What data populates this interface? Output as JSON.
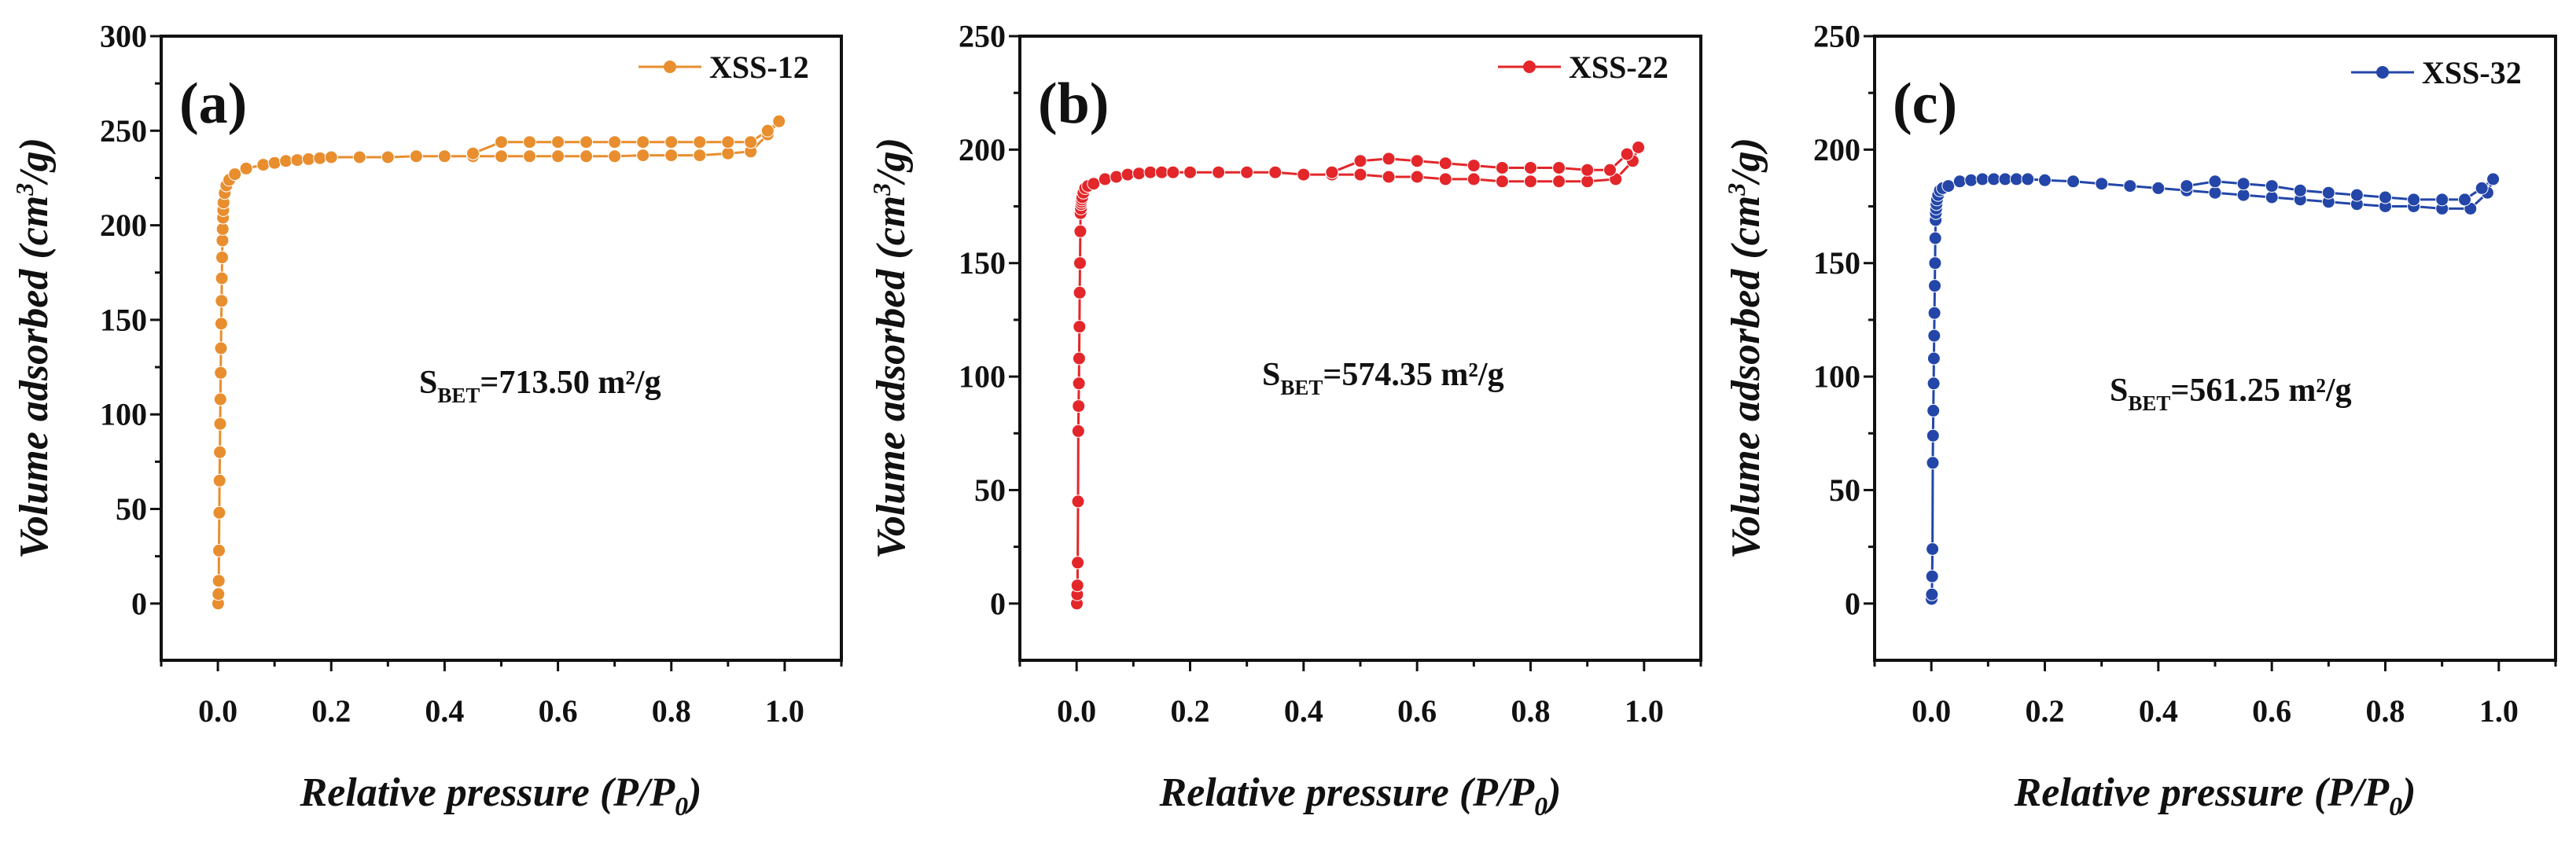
{
  "chart_data": [
    {
      "type": "line",
      "panel_label": "(a)",
      "xlabel_main": "Relative pressure (P/P",
      "xlabel_sub": "0",
      "xlabel_close": ")",
      "ylabel_main": "Volume adsorbed (cm",
      "ylabel_sup": "3",
      "ylabel_close": "/g)",
      "xlim": [
        -0.1,
        1.1
      ],
      "ylim": [
        -30,
        300
      ],
      "xticks": [
        "0.0",
        "0.2",
        "0.4",
        "0.6",
        "0.8",
        "1.0"
      ],
      "yticks": [
        "0",
        "50",
        "100",
        "150",
        "200",
        "250",
        "300"
      ],
      "legend_position": "top-right",
      "color": "#E88E2E",
      "annotation": {
        "prefix": "S",
        "sub": "BET",
        "value": "=713.50 m²/g"
      },
      "series": [
        {
          "name": "XSS-12",
          "x": [
            0.0005,
            0.001,
            0.0015,
            0.002,
            0.0025,
            0.003,
            0.0035,
            0.004,
            0.0045,
            0.005,
            0.0055,
            0.006,
            0.0065,
            0.007,
            0.0075,
            0.008,
            0.0085,
            0.009,
            0.0095,
            0.01,
            0.012,
            0.015,
            0.02,
            0.03,
            0.05,
            0.08,
            0.1,
            0.12,
            0.14,
            0.16,
            0.18,
            0.2,
            0.25,
            0.3,
            0.35,
            0.4,
            0.45,
            0.5,
            0.55,
            0.6,
            0.65,
            0.7,
            0.75,
            0.8,
            0.85,
            0.9,
            0.94,
            0.97,
            0.99,
            0.97,
            0.94,
            0.9,
            0.85,
            0.8,
            0.75,
            0.7,
            0.65,
            0.6,
            0.55,
            0.5,
            0.45
          ],
          "y": [
            0,
            5,
            12,
            28,
            48,
            65,
            80,
            95,
            108,
            122,
            135,
            148,
            160,
            172,
            183,
            192,
            198,
            204,
            208,
            212,
            217,
            221,
            224,
            227,
            230,
            232,
            233,
            234,
            234.5,
            235,
            235.5,
            236,
            236,
            236,
            236.5,
            236.5,
            236.5,
            236.5,
            236.5,
            236.5,
            236.5,
            236.5,
            237,
            237,
            237,
            238,
            239,
            248,
            255,
            250,
            244,
            244,
            244,
            244,
            244,
            244,
            244,
            244,
            244,
            244,
            238
          ]
        }
      ]
    },
    {
      "type": "line",
      "panel_label": "(b)",
      "xlabel_main": "Relative pressure (P/P",
      "xlabel_sub": "0",
      "xlabel_close": ")",
      "ylabel_main": "Volume adsorbed (cm",
      "ylabel_sup": "3",
      "ylabel_close": "/g)",
      "xlim": [
        -0.1,
        1.1
      ],
      "ylim": [
        -25,
        250
      ],
      "xticks": [
        "0.0",
        "0.2",
        "0.4",
        "0.6",
        "0.8",
        "1.0"
      ],
      "yticks": [
        "0",
        "50",
        "100",
        "150",
        "200",
        "250"
      ],
      "legend_position": "top-right",
      "color": "#E3262A",
      "annotation": {
        "prefix": "S",
        "sub": "BET",
        "value": "=574.35 m²/g"
      },
      "series": [
        {
          "name": "XSS-22",
          "x": [
            0.0005,
            0.001,
            0.0015,
            0.002,
            0.0025,
            0.003,
            0.0035,
            0.004,
            0.0045,
            0.005,
            0.0055,
            0.006,
            0.0065,
            0.007,
            0.0075,
            0.008,
            0.0085,
            0.009,
            0.01,
            0.012,
            0.015,
            0.02,
            0.03,
            0.05,
            0.07,
            0.09,
            0.11,
            0.13,
            0.15,
            0.17,
            0.2,
            0.25,
            0.3,
            0.35,
            0.4,
            0.45,
            0.5,
            0.55,
            0.6,
            0.65,
            0.7,
            0.75,
            0.8,
            0.85,
            0.9,
            0.95,
            0.98,
            0.99,
            0.97,
            0.94,
            0.9,
            0.85,
            0.8,
            0.75,
            0.7,
            0.65,
            0.6,
            0.55,
            0.5,
            0.45
          ],
          "y": [
            0,
            4,
            8,
            18,
            45,
            76,
            87,
            97,
            108,
            122,
            137,
            150,
            164,
            172,
            174,
            176,
            177,
            178,
            179,
            181,
            183,
            184,
            185,
            187,
            188,
            189,
            189.5,
            190,
            190,
            190,
            190,
            190,
            190,
            190,
            189,
            189,
            189,
            188,
            188,
            187,
            187,
            186,
            186,
            186,
            186,
            187,
            195,
            201,
            198,
            191,
            191,
            192,
            192,
            192,
            193,
            194,
            195,
            196,
            195,
            190
          ]
        }
      ]
    },
    {
      "type": "line",
      "panel_label": "(c)",
      "xlabel_main": "Relative pressure (P/P",
      "xlabel_sub": "0",
      "xlabel_close": ")",
      "ylabel_main": "Volume adsorbed (cm",
      "ylabel_sup": "3",
      "ylabel_close": "/g)",
      "xlim": [
        -0.1,
        1.1
      ],
      "ylim": [
        -25,
        250
      ],
      "xticks": [
        "0.0",
        "0.2",
        "0.4",
        "0.6",
        "0.8",
        "1.0"
      ],
      "yticks": [
        "0",
        "50",
        "100",
        "150",
        "200",
        "250"
      ],
      "legend_position": "top-right",
      "color": "#2346A8",
      "annotation": {
        "prefix": "S",
        "sub": "BET",
        "value": "=561.25 m²/g"
      },
      "series": [
        {
          "name": "XSS-32",
          "x": [
            0.0005,
            0.001,
            0.0015,
            0.002,
            0.0025,
            0.003,
            0.0035,
            0.004,
            0.0045,
            0.005,
            0.0055,
            0.006,
            0.0065,
            0.007,
            0.0075,
            0.008,
            0.0085,
            0.009,
            0.01,
            0.012,
            0.015,
            0.02,
            0.03,
            0.05,
            0.07,
            0.09,
            0.11,
            0.13,
            0.15,
            0.17,
            0.2,
            0.25,
            0.3,
            0.35,
            0.4,
            0.45,
            0.5,
            0.55,
            0.6,
            0.65,
            0.7,
            0.75,
            0.8,
            0.85,
            0.9,
            0.95,
            0.98,
            0.99,
            0.97,
            0.94,
            0.9,
            0.85,
            0.8,
            0.75,
            0.7,
            0.65,
            0.6,
            0.55,
            0.5,
            0.45
          ],
          "y": [
            2,
            4,
            12,
            24,
            62,
            74,
            85,
            97,
            108,
            118,
            128,
            140,
            150,
            161,
            169,
            172,
            174,
            176,
            178,
            180,
            182,
            183,
            184,
            186,
            186.5,
            187,
            187,
            187,
            187,
            187,
            186.5,
            186,
            185,
            184,
            183,
            182,
            181,
            180,
            179,
            178,
            177,
            176,
            175,
            175,
            174,
            174,
            181,
            187,
            183,
            178,
            178,
            178,
            179,
            180,
            181,
            182,
            184,
            185,
            186,
            184
          ]
        }
      ]
    }
  ]
}
